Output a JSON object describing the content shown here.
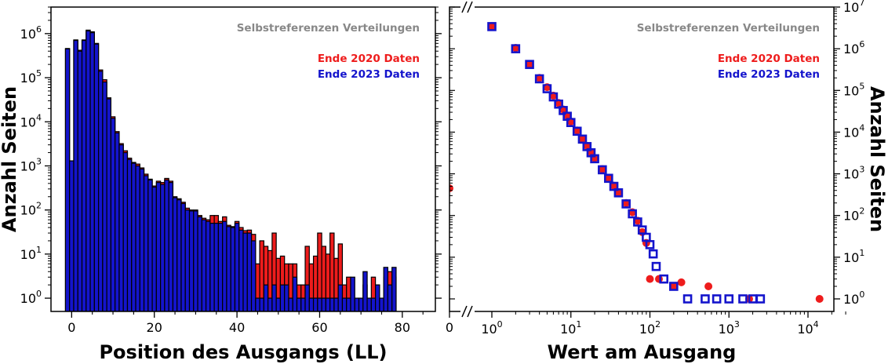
{
  "colors": {
    "red": "#ee1c1c",
    "blue": "#1414cc",
    "title_gray": "#888888"
  },
  "chart_data": [
    {
      "type": "bar",
      "title": "Selbstreferenzen Verteilungen",
      "xlabel": "Position des Ausgangs (LL)",
      "ylabel": "Anzahl Seiten",
      "xlim": [
        -5,
        88
      ],
      "ylim": [
        0.5,
        4000000
      ],
      "y_scale": "log",
      "legend_position": "top-right",
      "xticks": [
        0,
        20,
        40,
        60,
        80
      ],
      "yticks": [
        1,
        10,
        100,
        1000,
        10000,
        100000,
        1000000
      ],
      "x": [
        -1,
        0,
        1,
        2,
        3,
        4,
        5,
        6,
        7,
        8,
        9,
        10,
        11,
        12,
        13,
        14,
        15,
        16,
        17,
        18,
        19,
        20,
        21,
        22,
        23,
        24,
        25,
        26,
        27,
        28,
        29,
        30,
        31,
        32,
        33,
        34,
        35,
        36,
        37,
        38,
        39,
        40,
        41,
        42,
        43,
        44,
        45,
        46,
        47,
        48,
        49,
        50,
        51,
        52,
        53,
        54,
        55,
        56,
        57,
        58,
        59,
        60,
        61,
        62,
        63,
        64,
        65,
        66,
        67,
        68,
        69,
        70,
        71,
        72,
        73,
        74,
        75,
        76,
        77,
        78
      ],
      "series": [
        {
          "name": "Ende 2020 Daten",
          "values": [
            460000,
            1300,
            720000,
            420000,
            720000,
            1200000,
            1100000,
            600000,
            150000,
            90000,
            35000,
            13000,
            6000,
            3200,
            2200,
            1500,
            1200,
            1100,
            900,
            650,
            500,
            350,
            450,
            420,
            520,
            450,
            200,
            180,
            150,
            110,
            100,
            100,
            75,
            65,
            60,
            75,
            75,
            55,
            70,
            45,
            42,
            55,
            40,
            34,
            35,
            28,
            6,
            20,
            15,
            12,
            30,
            8,
            9,
            6,
            6,
            6,
            2,
            2,
            15,
            6,
            9,
            30,
            15,
            10,
            30,
            8,
            17,
            2,
            3,
            1,
            1,
            1,
            2,
            1,
            3,
            2,
            1,
            3,
            4,
            3
          ]
        },
        {
          "name": "Ende 2023 Daten",
          "values": [
            450000,
            1300,
            700000,
            400000,
            700000,
            1150000,
            1050000,
            580000,
            140000,
            80000,
            33000,
            12000,
            5600,
            3000,
            2000,
            1400,
            1150,
            1000,
            850,
            600,
            480,
            330,
            420,
            380,
            480,
            420,
            190,
            170,
            140,
            100,
            95,
            95,
            70,
            60,
            55,
            50,
            50,
            50,
            55,
            42,
            40,
            50,
            35,
            30,
            30,
            20,
            1,
            1,
            2,
            1,
            2,
            1,
            2,
            2,
            1,
            3,
            1,
            1,
            2,
            1,
            1,
            1,
            1,
            1,
            1,
            1,
            2,
            1,
            1,
            3,
            1,
            1,
            4,
            1,
            1,
            2,
            1,
            5,
            2,
            5
          ]
        }
      ]
    },
    {
      "type": "scatter",
      "title": "Selbstreferenzen Verteilungen",
      "xlabel": "Wert am Ausgang",
      "ylabel": "Anzahl Seiten",
      "x_scale": "log",
      "y_scale": "log",
      "xlim": [
        0.5,
        30000
      ],
      "ylim": [
        0.5,
        10000000
      ],
      "legend_position": "top-right",
      "xticks": [
        1,
        10,
        100,
        1000,
        10000
      ],
      "yticks": [
        1,
        10,
        100,
        1000,
        10000,
        100000,
        1000000,
        10000000
      ],
      "zero_value": {
        "x": 0,
        "y": 450
      },
      "series": [
        {
          "name": "Ende 2020 Daten",
          "points": [
            [
              1,
              3500000
            ],
            [
              2,
              1050000
            ],
            [
              3,
              430000
            ],
            [
              4,
              200000
            ],
            [
              5,
              120000
            ],
            [
              6,
              75000
            ],
            [
              7,
              50000
            ],
            [
              8,
              35000
            ],
            [
              9,
              25000
            ],
            [
              10,
              18000
            ],
            [
              12,
              11000
            ],
            [
              14,
              7000
            ],
            [
              16,
              4700
            ],
            [
              18,
              3300
            ],
            [
              20,
              2400
            ],
            [
              25,
              1300
            ],
            [
              30,
              800
            ],
            [
              35,
              520
            ],
            [
              40,
              360
            ],
            [
              50,
              200
            ],
            [
              60,
              120
            ],
            [
              70,
              75
            ],
            [
              80,
              40
            ],
            [
              90,
              22
            ],
            [
              100,
              3
            ],
            [
              130,
              3
            ],
            [
              200,
              2
            ],
            [
              250,
              2.5
            ],
            [
              550,
              2
            ],
            [
              1800,
              1
            ],
            [
              14000,
              1
            ]
          ]
        },
        {
          "name": "Ende 2023 Daten",
          "points": [
            [
              1,
              3400000
            ],
            [
              2,
              1000000
            ],
            [
              3,
              420000
            ],
            [
              4,
              190000
            ],
            [
              5,
              110000
            ],
            [
              6,
              70000
            ],
            [
              7,
              47000
            ],
            [
              8,
              33000
            ],
            [
              9,
              24000
            ],
            [
              10,
              17000
            ],
            [
              12,
              10500
            ],
            [
              14,
              6800
            ],
            [
              16,
              4500
            ],
            [
              18,
              3200
            ],
            [
              20,
              2300
            ],
            [
              25,
              1250
            ],
            [
              30,
              780
            ],
            [
              35,
              500
            ],
            [
              40,
              350
            ],
            [
              50,
              190
            ],
            [
              60,
              110
            ],
            [
              70,
              70
            ],
            [
              80,
              45
            ],
            [
              90,
              30
            ],
            [
              100,
              20
            ],
            [
              110,
              12
            ],
            [
              120,
              6
            ],
            [
              150,
              3
            ],
            [
              200,
              2
            ],
            [
              300,
              1
            ],
            [
              500,
              1
            ],
            [
              700,
              1
            ],
            [
              1000,
              1
            ],
            [
              1500,
              1
            ],
            [
              2000,
              1
            ],
            [
              2500,
              1
            ]
          ]
        }
      ]
    }
  ]
}
